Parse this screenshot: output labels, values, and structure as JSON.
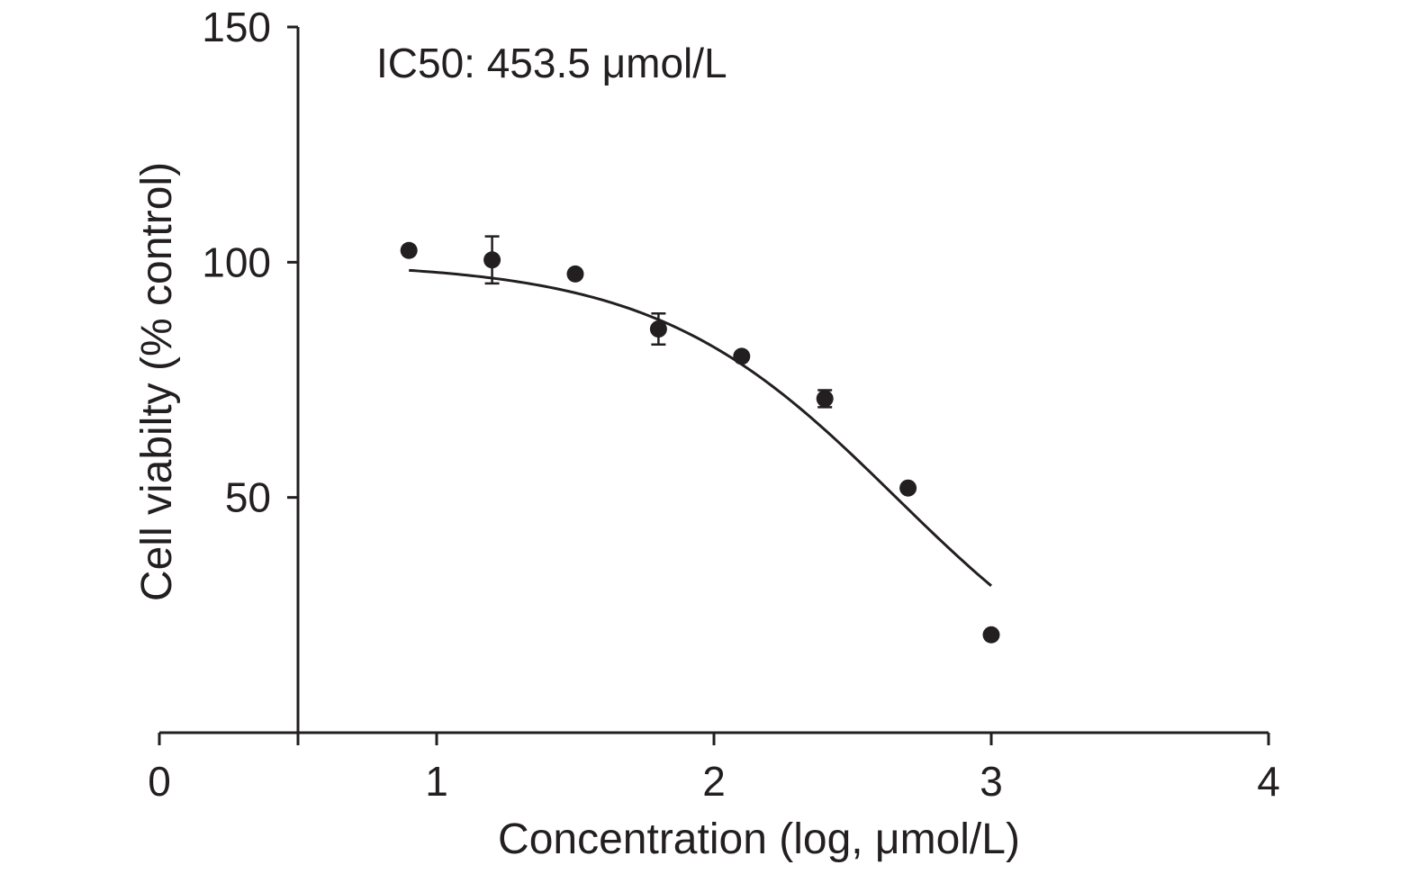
{
  "chart_data": {
    "type": "scatter",
    "xlabel": "Concentration (log, μmol/L)",
    "ylabel": "Cell viabilty (% control)",
    "annotation": "IC50: 453.5 μmol/L",
    "xlim": [
      0,
      4
    ],
    "ylim": [
      0,
      150
    ],
    "x_ticks": [
      0,
      1,
      2,
      3,
      4
    ],
    "y_ticks": [
      50,
      100,
      150
    ],
    "x_tick_labels": [
      "0",
      "1",
      "2",
      "3",
      "4"
    ],
    "y_tick_labels": [
      "50",
      "100",
      "150"
    ],
    "points": [
      {
        "x": 0.9,
        "y": 102.5,
        "err": 0
      },
      {
        "x": 1.2,
        "y": 100.5,
        "err": 5
      },
      {
        "x": 1.5,
        "y": 97.5,
        "err": 0
      },
      {
        "x": 1.8,
        "y": 85.8,
        "err": 3.3
      },
      {
        "x": 2.1,
        "y": 80.0,
        "err": 0
      },
      {
        "x": 2.4,
        "y": 71.0,
        "err": 1.8
      },
      {
        "x": 2.7,
        "y": 52.0,
        "err": 0
      },
      {
        "x": 3.0,
        "y": 20.8,
        "err": 0
      }
    ],
    "fit": {
      "top": 100,
      "bottom": 0,
      "log_ic50": 2.657,
      "hill_slope": -1,
      "x_range": [
        0.9,
        3.0
      ]
    },
    "grid": false,
    "legend": "none",
    "colors": {
      "marker": "#231f20",
      "line": "#231f20",
      "axis": "#231f20"
    }
  }
}
